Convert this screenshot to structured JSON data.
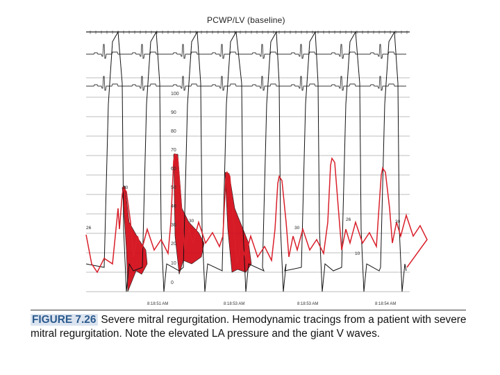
{
  "figure": {
    "title": "PCWP/LV (baseline)",
    "scale_labels": [
      "100",
      "90",
      "80",
      "70",
      "60",
      "50",
      "40",
      "30",
      "20",
      "10",
      "0"
    ],
    "annotations": [
      "30",
      "26",
      "30",
      "30",
      "26",
      "30",
      "10"
    ],
    "timestamps": [
      "8:18:51 AM",
      "8:18:53 AM",
      "8:18:53 AM",
      "8:18:54 AM"
    ],
    "colors": {
      "pcwp": "#d91f2a",
      "lv": "#111111",
      "fill": "#d40f1c",
      "grid": "#444444"
    }
  },
  "caption": {
    "label": "FIGURE 7.26",
    "text": "Severe mitral regurgitation. Hemodynamic tracings from a patient with severe mitral regurgitation. Note the elevated LA pressure and the giant V waves."
  }
}
